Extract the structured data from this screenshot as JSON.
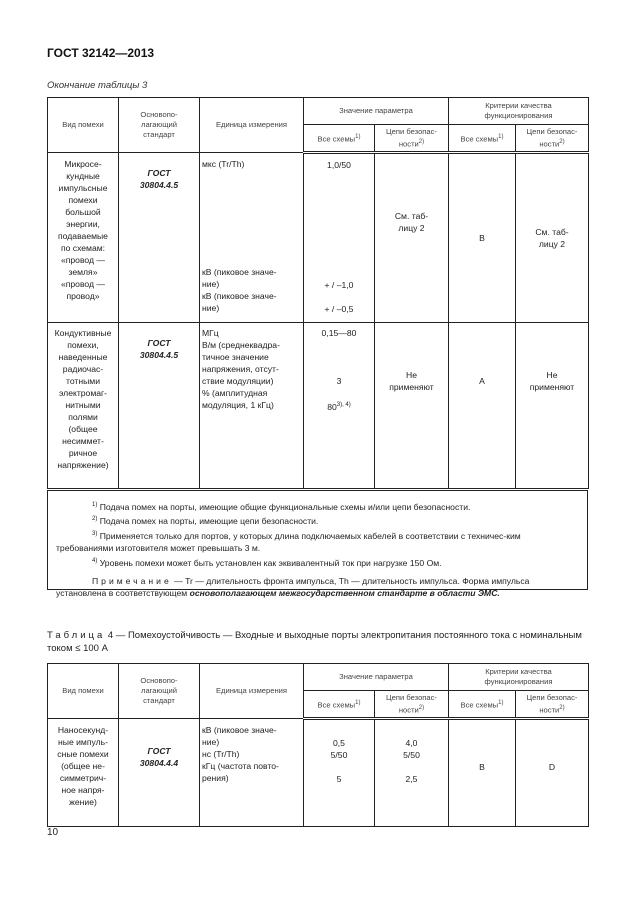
{
  "header": {
    "doc_id": "ГОСТ 32142—2013",
    "continuation": "Окончание таблицы 3"
  },
  "columns": {
    "type": "Вид помехи",
    "standard": "Основопо-\nлагающий\nстандарт",
    "unit": "Единица измерения",
    "value": "Значение  параметра",
    "criteria": "Критерии качества\nфункционирования",
    "all": "Все схемы",
    "safety": "Цепи безопас-\nности",
    "sup1": "1)",
    "sup2": "2)"
  },
  "table3": {
    "rows": [
      {
        "type": "Микросе-\nкундные\nимпульсные\nпомехи\nбольшой\nэнергии,\nподаваемые\nпо схемам:\n«провод —\nземля»\n«провод —\nпровод»",
        "standard": "ГОСТ\n30804.4.5",
        "unit": "мкс (Tr/Th)\n\n\n\n\n\n\n\n\nкВ (пиковое значе-\nние)\nкВ (пиковое значе-\nние)",
        "value_all": "1,0/50\n\n\n\n\n\n\n\n\n\n+ / –1,0\n\n+ / –0,5",
        "value_safety": "См. таб-\nлицу 2",
        "crit_all": "B",
        "crit_safety": "См. таб-\nлицу 2"
      },
      {
        "type": "Кондуктивные\nпомехи,\nнаведенные\nрадиочас-\nтотными\nэлектромаг-\nнитными\nполями\n(общее\nнесиммет-\nричное\nнапряжение)",
        "standard": "ГОСТ\n30804.4.5",
        "unit": "МГц\nВ/м (среднеквадра-\nтичное значение\nнапряжения, отсут-\nствие модуляции)\n% (амплитудная\nмодуляция, 1 кГц)",
        "value_all": "0,15—80\n\n\n\n3\n\n80",
        "value_all_sup": "3), 4)",
        "value_safety": "Не\nприменяют",
        "crit_all": "A",
        "crit_safety": "Не\nприменяют"
      }
    ],
    "notes": [
      {
        "sup": "1)",
        "text": " Подача помех на порты,  имеющие общие функциональные схемы и/или  цепи  безопасности."
      },
      {
        "sup": "2)",
        "text": " Подача помех на порты,  имеющие цепи безопасности."
      },
      {
        "sup": "3)",
        "text": " Применяется только для портов, у которых длина подключаемых кабелей  в соответствии с техничес-ким требованиями изготовителя   может превышать 3 м."
      },
      {
        "sup": "4)",
        "text": " Уровень помехи может быть установлен как эквивалентный ток при нагрузке 150 Ом."
      }
    ],
    "remark_label": "Примечание",
    "remark_text": " — Tr — длительность фронта импульса, Th — длительность импульса. Форма импульса установлена в соответствующем ",
    "remark_bold": "основополагающем межгосударственном стандарте в области ЭМС."
  },
  "table4": {
    "title_label": "Таблица",
    "title_text": " 4 — Помехоустойчивость — Входные и выходные порты электропитания  постоянного тока с номинальным током ≤ 100 А",
    "row": {
      "type": "Наносекунд-\nные импуль-\nсные помехи\n(общее не-\nсимметрич-\nное напря-\nжение)",
      "standard": "ГОСТ\n30804.4.4",
      "unit": "кВ (пиковое значе-\nние)\nнс (Tr/Th)\nкГц (частота повто-\nрения)",
      "value_all": "\n0,5\n5/50\n\n5",
      "value_safety": "\n4,0\n5/50\n\n2,5",
      "crit_all": "B",
      "crit_safety": "D"
    }
  },
  "footer": {
    "page_number": "10"
  }
}
